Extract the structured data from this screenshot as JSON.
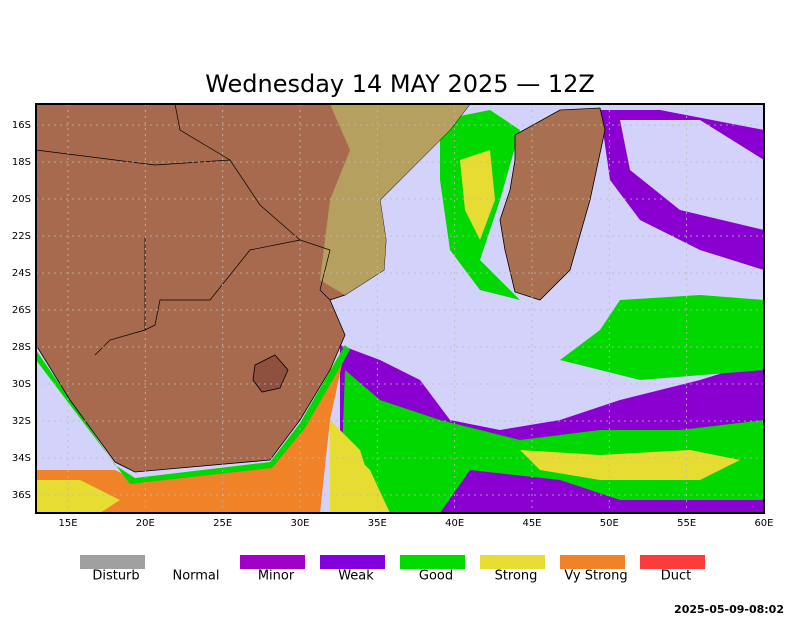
{
  "title": "Wednesday 14 MAY 2025 — 12Z",
  "lat_labels": [
    "16S",
    "18S",
    "20S",
    "22S",
    "24S",
    "26S",
    "28S",
    "30S",
    "32S",
    "34S",
    "36S"
  ],
  "lon_labels": [
    "15E",
    "20E",
    "25E",
    "30E",
    "35E",
    "40E",
    "45E",
    "50E",
    "55E",
    "60E"
  ],
  "legend": [
    {
      "label": "Disturb",
      "color": "#a0a0a0"
    },
    {
      "label": "Normal",
      "color": "#ffffff"
    },
    {
      "label": "Minor",
      "color": "#a000c8"
    },
    {
      "label": "Weak",
      "color": "#8200dc"
    },
    {
      "label": "Good",
      "color": "#00dc00"
    },
    {
      "label": "Strong",
      "color": "#e6dc32"
    },
    {
      "label": "Vy Strong",
      "color": "#f08228"
    },
    {
      "label": "Duct",
      "color": "#fa3c3c"
    }
  ],
  "timestamp": "2025-05-09-08:02"
}
